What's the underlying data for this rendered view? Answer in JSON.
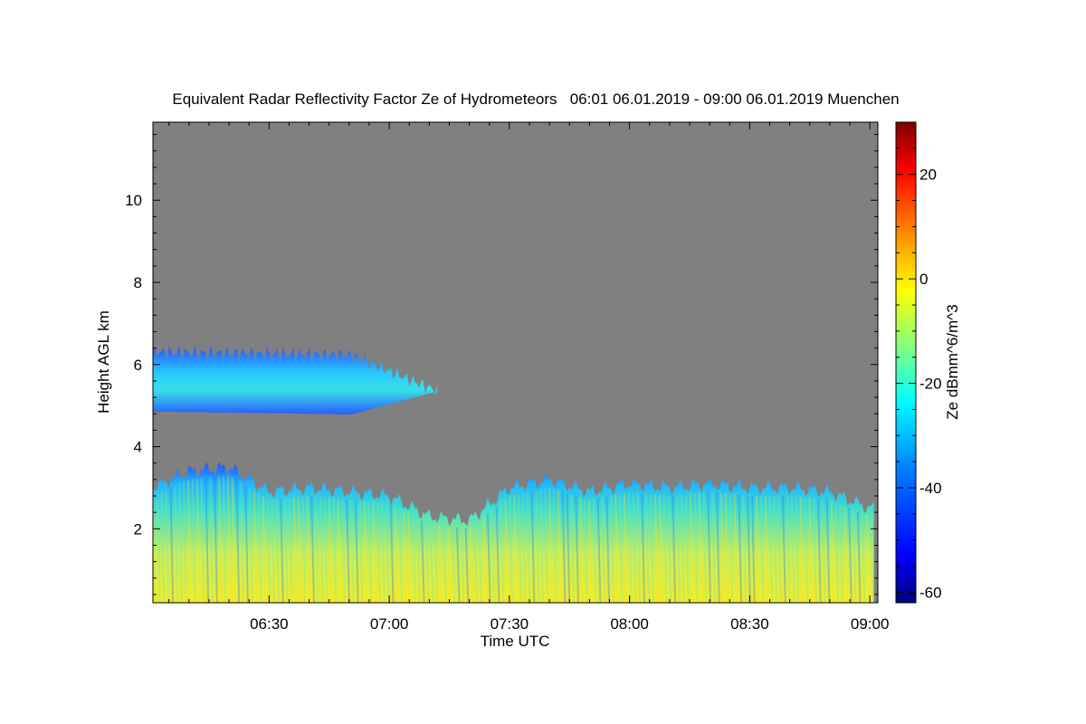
{
  "chart_data": {
    "type": "heatmap",
    "title": "Equivalent Radar Reflectivity Factor Ze of Hydrometeors   06:01 06.01.2019 - 09:00 06.01.2019 Muenchen",
    "xlabel": "Time UTC",
    "ylabel": "Height AGL km",
    "colorbar_label": "Ze dBmm^6/m^3",
    "x_range_minutes_utc": [
      361,
      542
    ],
    "x_ticks": [
      {
        "label": "06:30",
        "minute": 390
      },
      {
        "label": "07:00",
        "minute": 420
      },
      {
        "label": "07:30",
        "minute": 450
      },
      {
        "label": "08:00",
        "minute": 480
      },
      {
        "label": "08:30",
        "minute": 510
      },
      {
        "label": "09:00",
        "minute": 540
      }
    ],
    "y_range_km": [
      0.2,
      11.9
    ],
    "y_ticks": [
      2,
      4,
      6,
      8,
      10
    ],
    "colorbar_range_dbz": [
      -62,
      30
    ],
    "colorbar_ticks": [
      -60,
      -40,
      -20,
      0,
      20
    ],
    "no_data_color": "#808080",
    "upper_layer": {
      "time_start": "06:01",
      "time_end": "07:12",
      "base_km": 4.6,
      "top_km": 6.3,
      "typical_ze_dbz": -28
    },
    "lower_layer": {
      "time_start": "06:01",
      "time_end": "09:00",
      "base_km": 0.2,
      "top_km_range": [
        2.2,
        3.5
      ],
      "typical_ze_dbz": -10,
      "max_ze_dbz": 0
    },
    "top_km_profile": [
      {
        "time": "06:01",
        "top_km": 3.0
      },
      {
        "time": "06:10",
        "top_km": 3.4
      },
      {
        "time": "06:20",
        "top_km": 3.5
      },
      {
        "time": "06:30",
        "top_km": 2.9
      },
      {
        "time": "06:40",
        "top_km": 3.0
      },
      {
        "time": "06:50",
        "top_km": 2.9
      },
      {
        "time": "07:00",
        "top_km": 2.8
      },
      {
        "time": "07:10",
        "top_km": 2.3
      },
      {
        "time": "07:20",
        "top_km": 2.2
      },
      {
        "time": "07:30",
        "top_km": 3.0
      },
      {
        "time": "07:40",
        "top_km": 3.2
      },
      {
        "time": "07:50",
        "top_km": 2.9
      },
      {
        "time": "08:00",
        "top_km": 3.1
      },
      {
        "time": "08:10",
        "top_km": 3.0
      },
      {
        "time": "08:20",
        "top_km": 3.1
      },
      {
        "time": "08:30",
        "top_km": 3.0
      },
      {
        "time": "08:40",
        "top_km": 3.0
      },
      {
        "time": "08:50",
        "top_km": 2.9
      },
      {
        "time": "09:00",
        "top_km": 2.5
      }
    ],
    "colorscale": [
      "#00007f",
      "#0000ff",
      "#0080ff",
      "#00ffff",
      "#80ff80",
      "#ffff00",
      "#ff8000",
      "#ff0000",
      "#7f0000"
    ]
  }
}
